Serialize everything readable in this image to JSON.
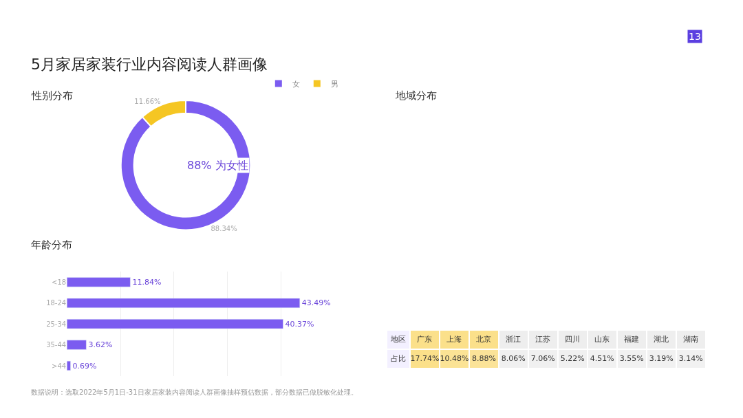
{
  "chart_data": [
    {
      "type": "donut",
      "title": "5月家居家装行业内容阅读人群画像",
      "subtitle": "性别分布",
      "categories": [
        "女",
        "男"
      ],
      "values": [
        88.34,
        11.66
      ],
      "colors": [
        "#7b5cf0",
        "#f5c623"
      ],
      "value_labels": [
        "88.34%",
        "11.66%"
      ],
      "legend": "top right",
      "annotations": [
        "88% 为女性",
        "数据说明：选取2022年5月1日-31日家居家装内容阅读人群画像抽样预估数据，部分数据已做脱敏化处理。",
        "13"
      ]
    },
    {
      "type": "bar",
      "orientation": "horizontal",
      "title": "年龄分布",
      "categories": [
        "<18",
        "18-24",
        "25-34",
        "35-44",
        ">44"
      ],
      "values": [
        11.84,
        43.49,
        40.37,
        3.62,
        0.69
      ],
      "value_labels": [
        "11.84%",
        "43.49%",
        "40.37%",
        "3.62%",
        "0.69%"
      ],
      "color": "#7b5cf0",
      "grid": "x",
      "tick_labels": "y"
    },
    {
      "type": "heatmap",
      "title": "地域分布",
      "xlabel": "地区",
      "categories": [
        "广东",
        "上海",
        "北京",
        "浙江",
        "江苏",
        "四川",
        "山东",
        "福建",
        "湖北",
        "湖南"
      ],
      "y_categories": [
        "占比"
      ],
      "cells": [
        [
          17.74,
          10.48,
          8.88,
          8.06,
          7.06,
          5.22,
          4.51,
          3.55,
          3.19,
          3.14
        ]
      ],
      "cell_labels": [
        [
          "17.74%",
          "10.48%",
          "8.88%",
          "8.06%",
          "7.06%",
          "5.22%",
          "4.51%",
          "3.55%",
          "3.19%",
          "3.14%"
        ]
      ],
      "colors": [
        "#fbe08a",
        "#fbe08a",
        "#fbe08a",
        "#eeeeee",
        "#eeeeee",
        "#eeeeee",
        "#eeeeee",
        "#eeeeee",
        "#eeeeee",
        "#eeeeee"
      ]
    }
  ]
}
